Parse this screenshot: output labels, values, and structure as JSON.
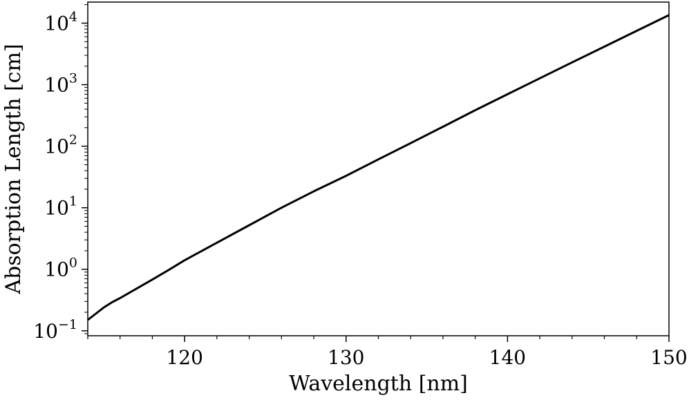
{
  "chart_data": {
    "type": "line",
    "title": "",
    "xlabel": "Wavelength [nm]",
    "ylabel": "Absorption Length [cm]",
    "xlim": [
      114,
      150
    ],
    "ylim": [
      0.083,
      22000
    ],
    "yscale": "log",
    "grid": false,
    "x_ticks": [
      {
        "value": 120,
        "label": "120"
      },
      {
        "value": 130,
        "label": "130"
      },
      {
        "value": 140,
        "label": "140"
      },
      {
        "value": 150,
        "label": "150"
      }
    ],
    "x_minor_ticks": [
      114,
      116,
      118,
      122,
      124,
      126,
      128,
      132,
      134,
      136,
      138,
      142,
      144,
      146,
      148
    ],
    "y_ticks": [
      {
        "value": 0.1,
        "base": "10",
        "exp": "−1"
      },
      {
        "value": 1,
        "base": "10",
        "exp": "0"
      },
      {
        "value": 10,
        "base": "10",
        "exp": "1"
      },
      {
        "value": 100,
        "base": "10",
        "exp": "2"
      },
      {
        "value": 1000,
        "base": "10",
        "exp": "3"
      },
      {
        "value": 10000,
        "base": "10",
        "exp": "4"
      }
    ],
    "series": [
      {
        "name": "",
        "color": "#000000",
        "x": [
          114,
          114.5,
          115,
          115.5,
          116,
          117,
          118,
          119,
          120,
          122,
          124,
          126,
          128,
          130,
          132,
          134,
          136,
          138,
          140,
          142,
          144,
          146,
          148,
          150
        ],
        "y": [
          0.15,
          0.19,
          0.24,
          0.29,
          0.34,
          0.48,
          0.68,
          0.97,
          1.4,
          2.7,
          5.2,
          10,
          18.5,
          33,
          61,
          112,
          207,
          385,
          700,
          1270,
          2300,
          4150,
          7500,
          13500
        ]
      }
    ]
  }
}
